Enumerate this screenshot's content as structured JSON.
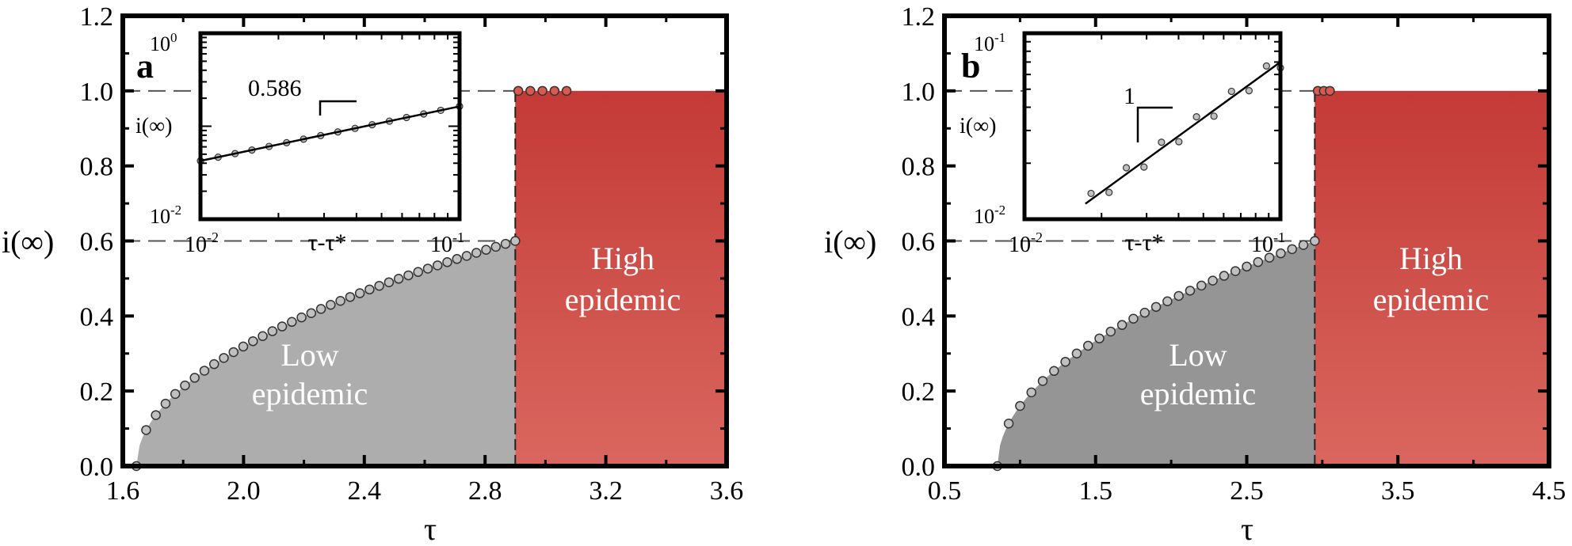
{
  "chart_data": [
    {
      "panel_label": "a",
      "type": "scatter",
      "xlabel": "τ",
      "ylabel": "i(∞)",
      "xlim": [
        1.6,
        3.6
      ],
      "ylim": [
        0.0,
        1.2
      ],
      "xticks": [
        "1.6",
        "2.0",
        "2.4",
        "2.8",
        "3.2",
        "3.6"
      ],
      "xtick_values": [
        1.6,
        2.0,
        2.4,
        2.8,
        3.2,
        3.6
      ],
      "yticks": [
        "0.0",
        "0.2",
        "0.4",
        "0.6",
        "0.8",
        "1.0",
        "1.2"
      ],
      "ytick_values": [
        0.0,
        0.2,
        0.4,
        0.6,
        0.8,
        1.0,
        1.2
      ],
      "tau_star": 1.645,
      "tau_c": 2.9,
      "jump_low": 0.6,
      "jump_high": 1.0,
      "region_low_label": [
        "Low",
        "epidemic"
      ],
      "region_high_label": [
        "High",
        "epidemic"
      ],
      "low_color": "#adadad",
      "high_color_top": "#c43a36",
      "high_color_bottom": "#d9675f",
      "low_points_count": 40,
      "high_points_x": [
        2.91,
        2.95,
        2.99,
        3.03,
        3.07
      ],
      "inset": {
        "type": "line",
        "xlabel": "τ-τ*",
        "ylabel": "i(∞)",
        "x_scale": "log",
        "y_scale": "log",
        "xlim": [
          0.01,
          0.1
        ],
        "ylim": [
          0.01,
          1.0
        ],
        "xtick_labels": [
          {
            "base": "10",
            "exp": "-2"
          },
          {
            "base": "10",
            "exp": "-1"
          }
        ],
        "ytick_labels": [
          {
            "base": "10",
            "exp": "0"
          },
          {
            "base": "10",
            "exp": "-2"
          }
        ],
        "slope_label": "0.586",
        "slope": 0.586,
        "points_x": [
          0.01,
          0.0117,
          0.0136,
          0.0158,
          0.0184,
          0.0215,
          0.025,
          0.0291,
          0.0339,
          0.0395,
          0.046,
          0.0536,
          0.0624,
          0.0727,
          0.0846,
          0.1
        ]
      }
    },
    {
      "panel_label": "b",
      "type": "scatter",
      "xlabel": "τ",
      "ylabel": "i(∞)",
      "xlim": [
        0.5,
        4.5
      ],
      "ylim": [
        0.0,
        1.2
      ],
      "xticks": [
        "0.5",
        "1.5",
        "2.5",
        "3.5",
        "4.5"
      ],
      "xtick_values": [
        0.5,
        1.5,
        2.5,
        3.5,
        4.5
      ],
      "yticks": [
        "0.0",
        "0.2",
        "0.4",
        "0.6",
        "0.8",
        "1.0",
        "1.2"
      ],
      "ytick_values": [
        0.0,
        0.2,
        0.4,
        0.6,
        0.8,
        1.0,
        1.2
      ],
      "tau_star": 0.85,
      "tau_c": 2.95,
      "jump_low": 0.6,
      "jump_high": 1.0,
      "region_low_label": [
        "Low",
        "epidemic"
      ],
      "region_high_label": [
        "High",
        "epidemic"
      ],
      "low_color": "#959595",
      "high_color_top": "#c43a36",
      "high_color_bottom": "#d9675f",
      "low_points_count": 29,
      "high_points_x": [
        2.97,
        3.01,
        3.05
      ],
      "inset": {
        "type": "line",
        "xlabel": "τ-τ*",
        "ylabel": "i(∞)",
        "x_scale": "log",
        "y_scale": "log",
        "xlim": [
          0.01,
          0.1
        ],
        "ylim": [
          0.01,
          0.1
        ],
        "xtick_labels": [
          {
            "base": "10",
            "exp": "-2"
          },
          {
            "base": "10",
            "exp": "-1"
          }
        ],
        "ytick_labels": [
          {
            "base": "10",
            "exp": "-1"
          },
          {
            "base": "10",
            "exp": "-2"
          }
        ],
        "slope_label": "1",
        "slope": 1.0,
        "points_x": [
          0.0182,
          0.0214,
          0.025,
          0.0293,
          0.0343,
          0.0401,
          0.047,
          0.055,
          0.0644,
          0.0754,
          0.0882,
          0.1
        ]
      }
    }
  ]
}
